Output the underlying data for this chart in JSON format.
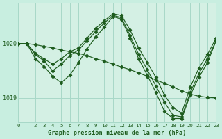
{
  "title": "Graphe pression niveau de la mer (hPa)",
  "bg_color": "#c8eee0",
  "plot_bg_color": "#d4f0e4",
  "grid_color": "#a8d8c8",
  "line_color": "#1e5c1e",
  "marker_color": "#1e5c1e",
  "yticks": [
    1019,
    1020
  ],
  "xticks": [
    0,
    2,
    3,
    4,
    5,
    6,
    7,
    8,
    9,
    10,
    11,
    12,
    13,
    14,
    15,
    16,
    17,
    18,
    19,
    20,
    21,
    22,
    23
  ],
  "xlim": [
    0,
    23
  ],
  "ylim": [
    1018.55,
    1020.75
  ],
  "series": [
    {
      "x": [
        0,
        1,
        2,
        3,
        4,
        5,
        6,
        7,
        8,
        9,
        10,
        11,
        12,
        13,
        14,
        15,
        16,
        17,
        18,
        19,
        20,
        21,
        22,
        23
      ],
      "y": [
        1020.0,
        1020.0,
        1019.98,
        1019.95,
        1019.92,
        1019.88,
        1019.85,
        1019.82,
        1019.78,
        1019.72,
        1019.68,
        1019.62,
        1019.57,
        1019.52,
        1019.46,
        1019.4,
        1019.33,
        1019.27,
        1019.2,
        1019.13,
        1019.07,
        1019.03,
        1019.01,
        1019.0
      ]
    },
    {
      "x": [
        0,
        1,
        2,
        3,
        4,
        5,
        6,
        7,
        8,
        9,
        10,
        11,
        12,
        13,
        14,
        15,
        16,
        17,
        18,
        19,
        20,
        21,
        22,
        23
      ],
      "y": [
        1020.0,
        1020.0,
        1019.82,
        1019.72,
        1019.62,
        1019.72,
        1019.85,
        1019.92,
        1020.1,
        1020.28,
        1020.42,
        1020.55,
        1020.52,
        1020.25,
        1019.92,
        1019.65,
        1019.38,
        1019.05,
        1018.82,
        1018.72,
        1019.2,
        1019.55,
        1019.8,
        1020.1
      ]
    },
    {
      "x": [
        0,
        1,
        2,
        3,
        4,
        5,
        6,
        7,
        8,
        9,
        10,
        11,
        12,
        13,
        14,
        15,
        16,
        17,
        18,
        19,
        20,
        21,
        22,
        23
      ],
      "y": [
        1020.0,
        1020.0,
        1019.8,
        1019.68,
        1019.5,
        1019.62,
        1019.78,
        1019.88,
        1020.05,
        1020.22,
        1020.38,
        1020.52,
        1020.48,
        1020.15,
        1019.8,
        1019.52,
        1019.22,
        1018.92,
        1018.68,
        1018.65,
        1019.1,
        1019.45,
        1019.72,
        1020.05
      ]
    },
    {
      "x": [
        0,
        1,
        2,
        3,
        4,
        5,
        6,
        7,
        8,
        9,
        10,
        11,
        12,
        13,
        14,
        15,
        16,
        17,
        18,
        19,
        20,
        21,
        22,
        23
      ],
      "y": [
        1020.0,
        1020.0,
        1019.72,
        1019.58,
        1019.4,
        1019.28,
        1019.42,
        1019.65,
        1019.9,
        1020.12,
        1020.3,
        1020.5,
        1020.45,
        1020.1,
        1019.72,
        1019.42,
        1019.1,
        1018.75,
        1018.62,
        1018.62,
        1019.05,
        1019.38,
        1019.65,
        1020.05
      ]
    }
  ]
}
